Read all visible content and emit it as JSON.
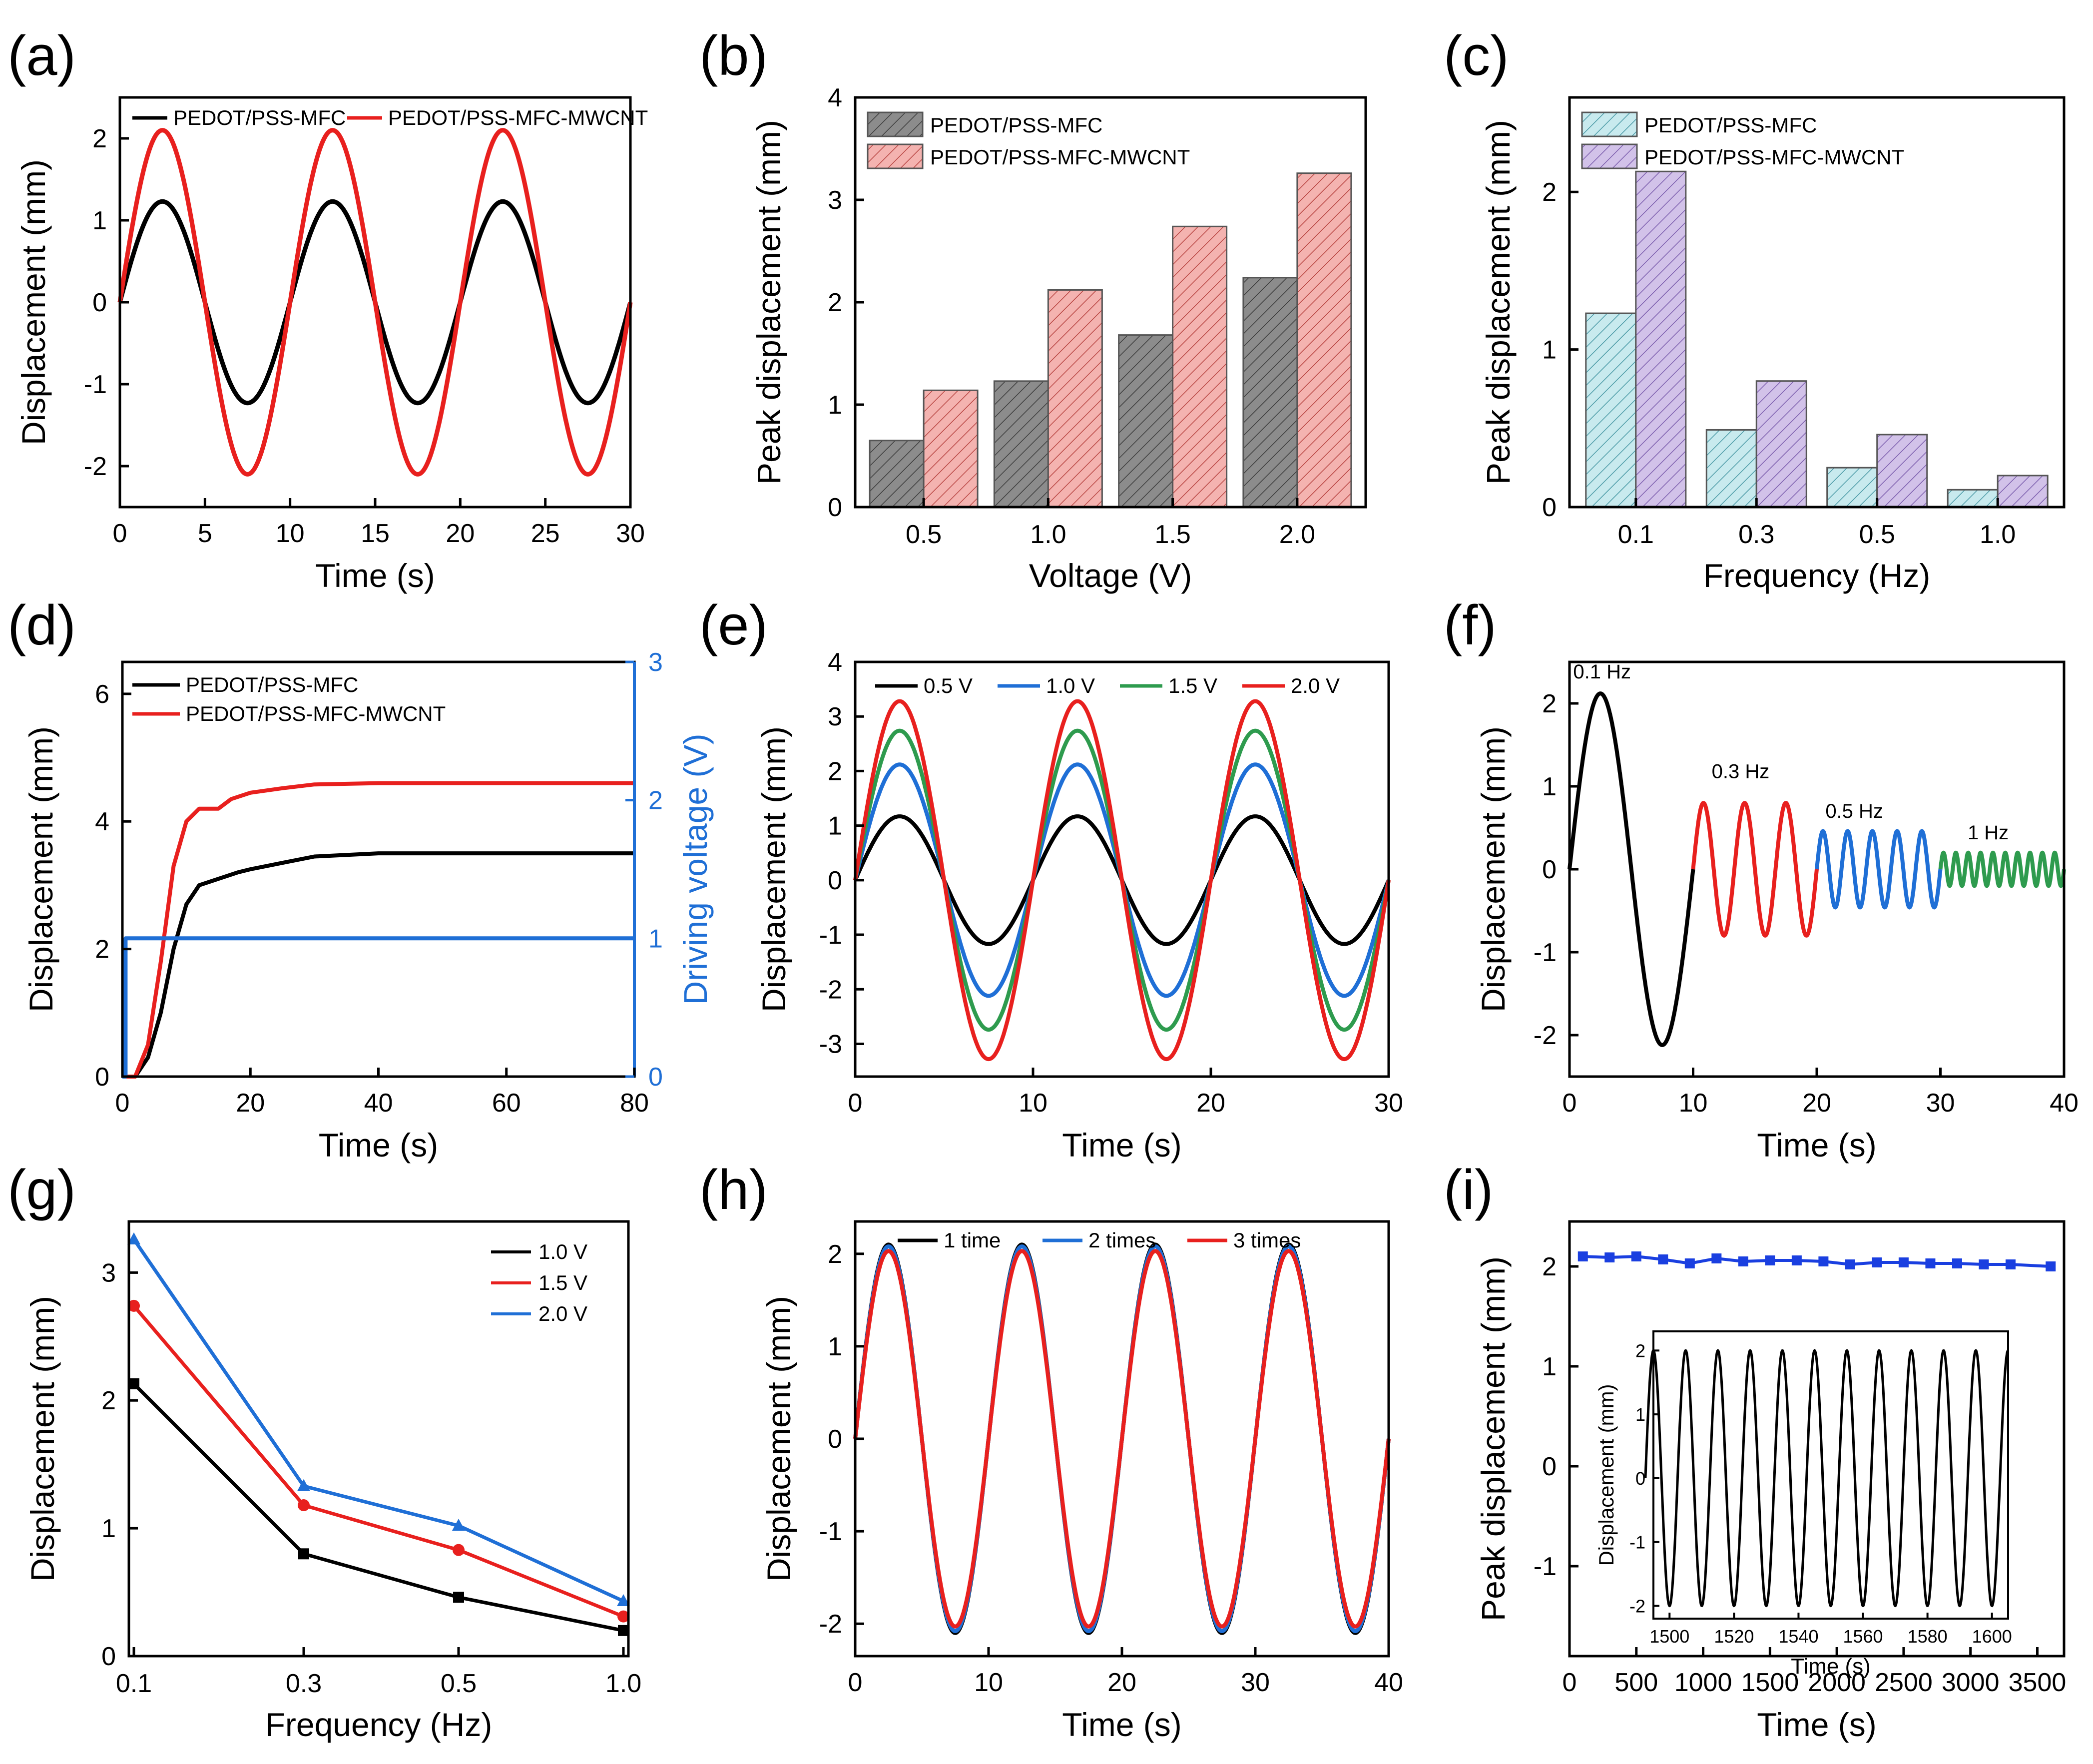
{
  "chart_data": [
    {
      "panel": "(a)",
      "type": "line",
      "xlabel": "Time (s)",
      "ylabel": "Displacement (mm)",
      "xlim": [
        0,
        30
      ],
      "ylim": [
        -2.5,
        2.5
      ],
      "xticks": [
        0,
        5,
        10,
        15,
        20,
        25,
        30
      ],
      "yticks": [
        -2,
        -1,
        0,
        1,
        2
      ],
      "legend": "top",
      "series": [
        {
          "name": "PEDOT/PSS-MFC",
          "color": "#000000",
          "amplitude": 1.23,
          "period": 10,
          "x_range": [
            0,
            30
          ]
        },
        {
          "name": "PEDOT/PSS-MFC-MWCNT",
          "color": "#e8201e",
          "amplitude": 2.1,
          "period": 10,
          "x_range": [
            0,
            30
          ]
        }
      ]
    },
    {
      "panel": "(b)",
      "type": "bar",
      "xlabel": "Voltage (V)",
      "ylabel": "Peak displacement (mm)",
      "categories": [
        "0.5",
        "1.0",
        "1.5",
        "2.0"
      ],
      "ylim": [
        0,
        4
      ],
      "yticks": [
        0,
        1,
        2,
        3,
        4
      ],
      "legend": "top-left",
      "series": [
        {
          "name": "PEDOT/PSS-MFC",
          "color": "#8c8c8c",
          "values": [
            0.65,
            1.23,
            1.68,
            2.24
          ]
        },
        {
          "name": "PEDOT/PSS-MFC-MWCNT",
          "color": "#f2aaaa",
          "values": [
            1.14,
            2.12,
            2.74,
            3.26
          ]
        }
      ]
    },
    {
      "panel": "(c)",
      "type": "bar",
      "xlabel": "Frequency (Hz)",
      "ylabel": "Peak displacement (mm)",
      "categories": [
        "0.1",
        "0.3",
        "0.5",
        "1.0"
      ],
      "ylim": [
        0,
        2.6
      ],
      "yticks": [
        0,
        1,
        2
      ],
      "legend": "top-left",
      "series": [
        {
          "name": "PEDOT/PSS-MFC",
          "color": "#bfe6ea",
          "values": [
            1.23,
            0.49,
            0.25,
            0.11
          ]
        },
        {
          "name": "PEDOT/PSS-MFC-MWCNT",
          "color": "#c8b6e2",
          "values": [
            2.13,
            0.8,
            0.46,
            0.2
          ]
        }
      ]
    },
    {
      "panel": "(d)",
      "type": "line",
      "xlabel": "Time (s)",
      "ylabel": "Displacement (mm)",
      "y2label": "Driving voltage (V)",
      "xlim": [
        0,
        80
      ],
      "ylim": [
        0,
        6.5
      ],
      "y2lim": [
        0,
        3
      ],
      "xticks": [
        0,
        20,
        40,
        60,
        80
      ],
      "yticks": [
        0,
        2,
        4,
        6
      ],
      "y2ticks": [
        0,
        1,
        2,
        3
      ],
      "legend": "top-left",
      "series": [
        {
          "name": "PEDOT/PSS-MFC",
          "color": "#000000",
          "axis": "left",
          "x": [
            0,
            2,
            4,
            6,
            8,
            10,
            12,
            15,
            18,
            20,
            25,
            30,
            40,
            60,
            80
          ],
          "y": [
            0,
            0,
            0.3,
            1.0,
            2.0,
            2.7,
            3.0,
            3.1,
            3.2,
            3.25,
            3.35,
            3.45,
            3.5,
            3.5,
            3.5
          ]
        },
        {
          "name": "PEDOT/PSS-MFC-MWCNT",
          "color": "#e8201e",
          "axis": "left",
          "x": [
            0,
            2,
            4,
            6,
            8,
            10,
            12,
            15,
            17,
            20,
            25,
            30,
            40,
            60,
            80
          ],
          "y": [
            0,
            0,
            0.5,
            1.8,
            3.3,
            4.0,
            4.2,
            4.2,
            4.35,
            4.45,
            4.52,
            4.58,
            4.6,
            4.6,
            4.6
          ]
        },
        {
          "name": "Driving voltage",
          "color": "#1f6fd6",
          "axis": "right",
          "x": [
            0,
            0.5,
            0.5,
            80
          ],
          "y": [
            0,
            0,
            1,
            1
          ]
        }
      ]
    },
    {
      "panel": "(e)",
      "type": "line",
      "xlabel": "Time (s)",
      "ylabel": "Displacement (mm)",
      "xlim": [
        0,
        30
      ],
      "ylim": [
        -3.6,
        4
      ],
      "xticks": [
        0,
        10,
        20,
        30
      ],
      "yticks": [
        -3,
        -2,
        -1,
        0,
        1,
        2,
        3,
        4
      ],
      "legend": "top",
      "series": [
        {
          "name": "0.5 V",
          "color": "#000000",
          "amplitude": 1.17,
          "period": 10
        },
        {
          "name": "1.0 V",
          "color": "#1f6fd6",
          "amplitude": 2.12,
          "period": 10
        },
        {
          "name": "1.5 V",
          "color": "#2e9b4e",
          "amplitude": 2.74,
          "period": 10
        },
        {
          "name": "2.0 V",
          "color": "#e8201e",
          "amplitude": 3.28,
          "period": 10
        }
      ]
    },
    {
      "panel": "(f)",
      "type": "line",
      "xlabel": "Time (s)",
      "ylabel": "Displacement (mm)",
      "xlim": [
        0,
        40
      ],
      "ylim": [
        -2.5,
        2.5
      ],
      "xticks": [
        0,
        10,
        20,
        30,
        40
      ],
      "yticks": [
        -2,
        -1,
        0,
        1,
        2
      ],
      "annotations": [
        "0.1 Hz",
        "0.3 Hz",
        "0.5 Hz",
        "1 Hz"
      ],
      "series": [
        {
          "name": "0.1 Hz",
          "color": "#000000",
          "amplitude": 2.12,
          "period": 10,
          "x_range": [
            0,
            10
          ]
        },
        {
          "name": "0.3 Hz",
          "color": "#e8201e",
          "amplitude": 0.8,
          "period": 3.333,
          "x_range": [
            10,
            20
          ]
        },
        {
          "name": "0.5 Hz",
          "color": "#1f6fd6",
          "amplitude": 0.46,
          "period": 2,
          "x_range": [
            20,
            30
          ]
        },
        {
          "name": "1 Hz",
          "color": "#2e9b4e",
          "amplitude": 0.2,
          "period": 1,
          "x_range": [
            30,
            40
          ]
        }
      ]
    },
    {
      "panel": "(g)",
      "type": "line",
      "xlabel": "Frequency (Hz)",
      "ylabel": "Displacement (mm)",
      "categories": [
        "0.1",
        "0.3",
        "0.5",
        "1.0"
      ],
      "ylim": [
        0,
        3.4
      ],
      "yticks": [
        0,
        1,
        2,
        3
      ],
      "legend": "top-right",
      "series": [
        {
          "name": "1.0 V",
          "color": "#000000",
          "marker": "square",
          "values": [
            2.13,
            0.8,
            0.46,
            0.2
          ]
        },
        {
          "name": "1.5 V",
          "color": "#e8201e",
          "marker": "circle",
          "values": [
            2.74,
            1.18,
            0.83,
            0.31
          ]
        },
        {
          "name": "2.0 V",
          "color": "#1f6fd6",
          "marker": "triangle",
          "values": [
            3.26,
            1.33,
            1.02,
            0.43
          ]
        }
      ]
    },
    {
      "panel": "(h)",
      "type": "line",
      "xlabel": "Time (s)",
      "ylabel": "Displacement (mm)",
      "xlim": [
        0,
        40
      ],
      "ylim": [
        -2.35,
        2.35
      ],
      "xticks": [
        0,
        10,
        20,
        30,
        40
      ],
      "yticks": [
        -2,
        -1,
        0,
        1,
        2
      ],
      "legend": "top",
      "series": [
        {
          "name": "1 time",
          "color": "#000000",
          "amplitude": 2.1,
          "period": 10
        },
        {
          "name": "2 times",
          "color": "#1f6fd6",
          "amplitude": 2.08,
          "period": 10
        },
        {
          "name": "3 times",
          "color": "#e8201e",
          "amplitude": 2.03,
          "period": 10
        }
      ]
    },
    {
      "panel": "(i)",
      "type": "line",
      "xlabel": "Time (s)",
      "ylabel": "Peak displacement (mm)",
      "xlim": [
        0,
        3700
      ],
      "ylim": [
        -1.9,
        2.45
      ],
      "xticks": [
        0,
        500,
        1000,
        1500,
        2000,
        2500,
        3000,
        3500
      ],
      "yticks": [
        -1,
        0,
        1,
        2
      ],
      "series": [
        {
          "name": "Peak displacement",
          "color": "#1a3fe0",
          "marker": "square",
          "x": [
            100,
            300,
            500,
            700,
            900,
            1100,
            1300,
            1500,
            1700,
            1900,
            2100,
            2300,
            2500,
            2700,
            2900,
            3100,
            3300,
            3600
          ],
          "y": [
            2.1,
            2.09,
            2.1,
            2.07,
            2.03,
            2.08,
            2.05,
            2.06,
            2.06,
            2.05,
            2.02,
            2.04,
            2.04,
            2.03,
            2.03,
            2.02,
            2.02,
            2.0
          ]
        }
      ],
      "inset": {
        "type": "line",
        "xlabel": "Time (s)",
        "ylabel": "Displacement (mm)",
        "xlim": [
          1495,
          1605
        ],
        "ylim": [
          -2.2,
          2.3
        ],
        "xticks": [
          1500,
          1520,
          1540,
          1560,
          1580,
          1600
        ],
        "yticks": [
          -2,
          -1,
          0,
          1,
          2
        ],
        "series": [
          {
            "name": "Displacement",
            "color": "#000000",
            "amplitude": 2.0,
            "period": 10,
            "x_range": [
              1495,
              1605
            ]
          }
        ]
      }
    }
  ]
}
